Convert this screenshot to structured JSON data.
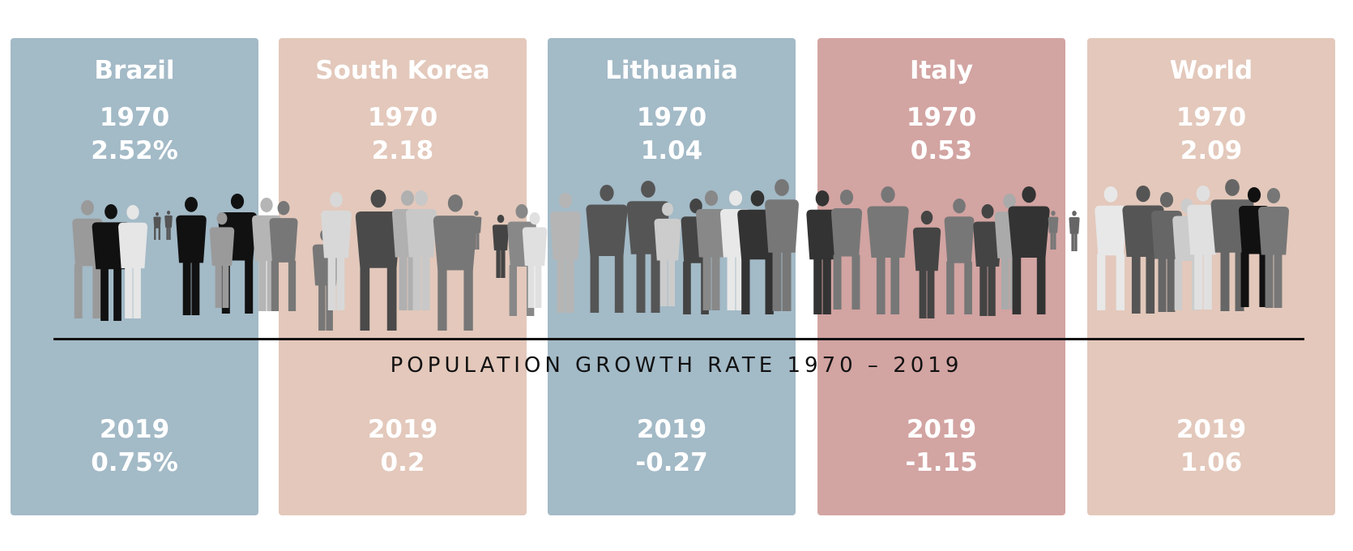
{
  "caption": "POPULATION GROWTH RATE 1970 – 2019",
  "colors": {
    "blue": "#a3bac7",
    "peach": "#e3c8bb",
    "rose": "#d2a4a2"
  },
  "countries": [
    {
      "name": "Brazil",
      "year_start": "1970",
      "value_start": "2.52%",
      "year_end": "2019",
      "value_end": "0.75%",
      "color": "#a3bac7"
    },
    {
      "name": "South Korea",
      "year_start": "1970",
      "value_start": "2.18",
      "year_end": "2019",
      "value_end": "0.2",
      "color": "#e3c8bb"
    },
    {
      "name": "Lithuania",
      "year_start": "1970",
      "value_start": "1.04",
      "year_end": "2019",
      "value_end": "-0.27",
      "color": "#a3bac7"
    },
    {
      "name": "Italy",
      "year_start": "1970",
      "value_start": "0.53",
      "year_end": "2019",
      "value_end": "-1.15",
      "color": "#d2a4a2"
    },
    {
      "name": "World",
      "year_start": "1970",
      "value_start": "2.09",
      "year_end": "2019",
      "value_end": "1.06",
      "color": "#e3c8bb"
    }
  ]
}
